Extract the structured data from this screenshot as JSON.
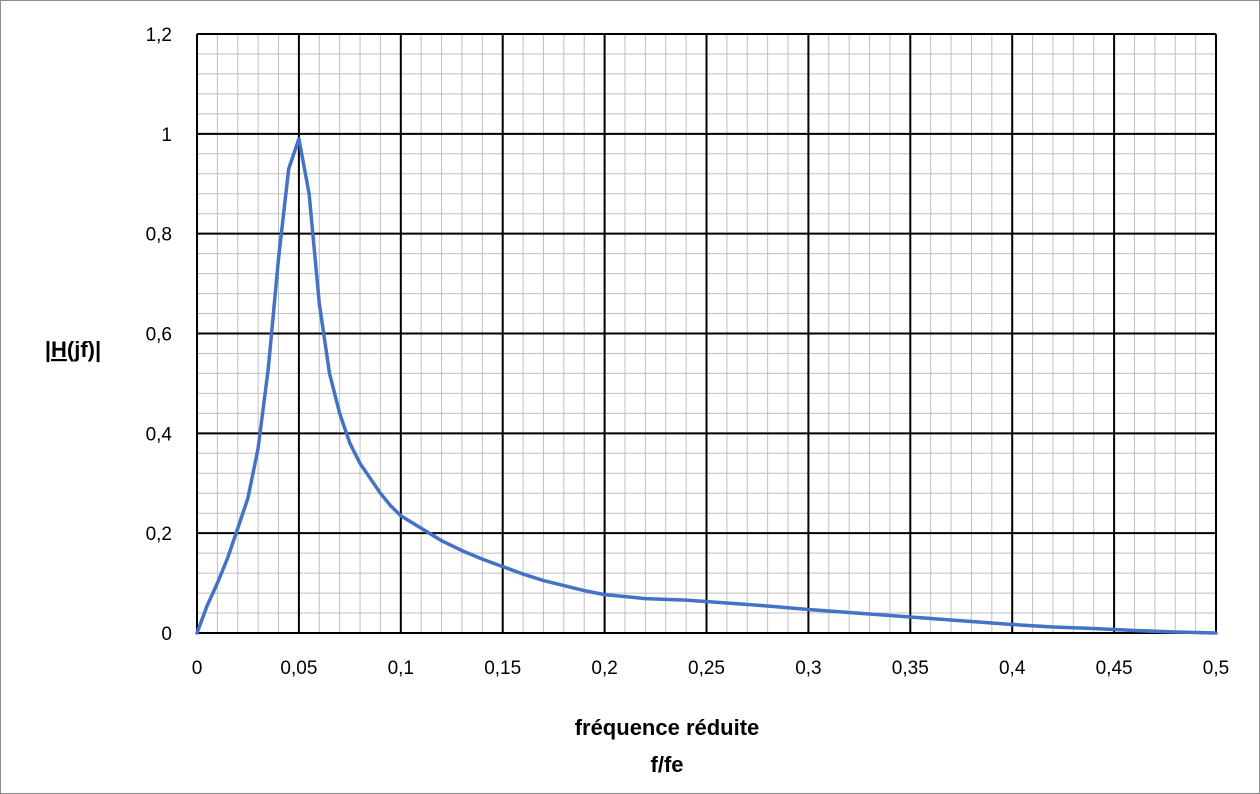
{
  "chart_data": {
    "type": "line",
    "xlabel": "fréquence réduite",
    "xlabel_line2": "f/fe",
    "ylabel_prefix": "|",
    "ylabel_underlined": "H",
    "ylabel_suffix": "(jf)|",
    "xlim": [
      0,
      0.5
    ],
    "ylim": [
      0,
      1.2
    ],
    "x_ticks": [
      0,
      0.05,
      0.1,
      0.15,
      0.2,
      0.25,
      0.3,
      0.35,
      0.4,
      0.45,
      0.5
    ],
    "x_tick_labels": [
      "0",
      "0,05",
      "0,1",
      "0,15",
      "0,2",
      "0,25",
      "0,3",
      "0,35",
      "0,4",
      "0,45",
      "0,5"
    ],
    "y_ticks": [
      0,
      0.2,
      0.4,
      0.6,
      0.8,
      1,
      1.2
    ],
    "y_tick_labels": [
      "0",
      "0,2",
      "0,4",
      "0,6",
      "0,8",
      "1",
      "1,2"
    ],
    "grid": true,
    "line_color": "#4472C4",
    "series": [
      {
        "x": [
          0,
          0.005,
          0.01,
          0.015,
          0.02,
          0.025,
          0.03,
          0.035,
          0.04,
          0.045,
          0.05,
          0.055,
          0.06,
          0.065,
          0.07,
          0.075,
          0.08,
          0.085,
          0.09,
          0.095,
          0.1,
          0.11,
          0.12,
          0.13,
          0.14,
          0.15,
          0.16,
          0.17,
          0.18,
          0.19,
          0.2,
          0.22,
          0.24,
          0.26,
          0.28,
          0.3,
          0.32,
          0.34,
          0.36,
          0.38,
          0.4,
          0.42,
          0.44,
          0.46,
          0.48,
          0.5
        ],
        "values": [
          0,
          0.055,
          0.1,
          0.15,
          0.21,
          0.27,
          0.37,
          0.53,
          0.75,
          0.93,
          0.99,
          0.88,
          0.66,
          0.52,
          0.44,
          0.38,
          0.34,
          0.31,
          0.28,
          0.255,
          0.235,
          0.21,
          0.185,
          0.165,
          0.148,
          0.133,
          0.118,
          0.105,
          0.095,
          0.085,
          0.077,
          0.069,
          0.066,
          0.06,
          0.054,
          0.047,
          0.041,
          0.035,
          0.029,
          0.023,
          0.017,
          0.012,
          0.009,
          0.005,
          0.002,
          0
        ]
      }
    ]
  }
}
